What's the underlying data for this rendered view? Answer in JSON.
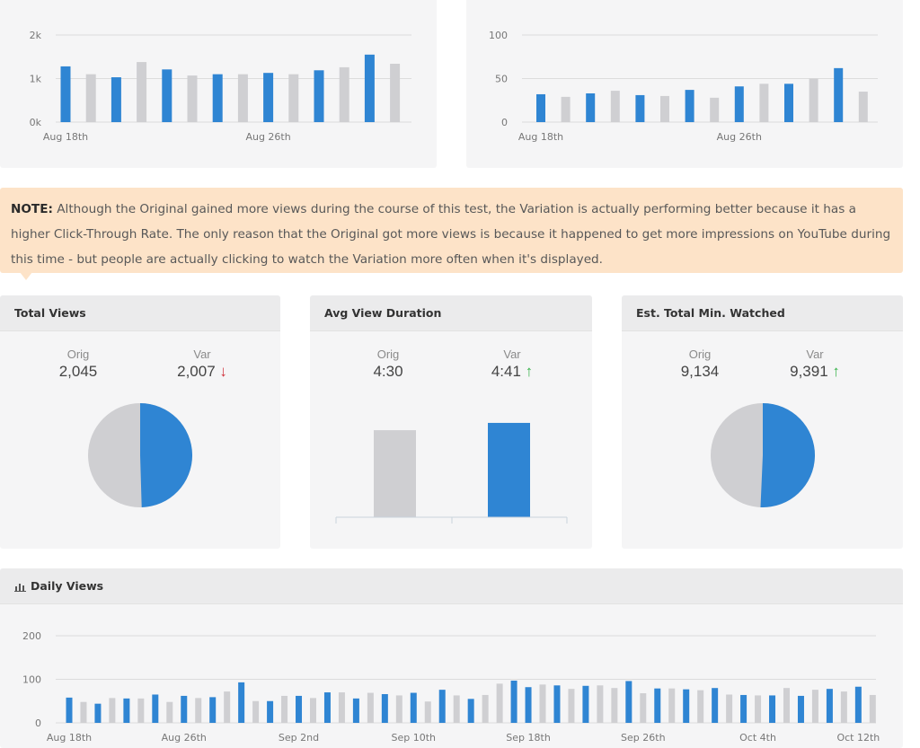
{
  "colors": {
    "primary": "#2f85d3",
    "secondary": "#cfcfd2",
    "note_bg": "#fde3c8",
    "down": "#d0313b",
    "up": "#37b34a"
  },
  "top_left_chart": {
    "chart_data": {
      "type": "bar",
      "ylim": [
        0,
        2000
      ],
      "y_ticks": [
        {
          "v": 0,
          "label": "0k"
        },
        {
          "v": 1000,
          "label": "1k"
        },
        {
          "v": 2000,
          "label": "2k"
        }
      ],
      "x_labels": [
        {
          "index": 0,
          "label": "Aug 18th"
        },
        {
          "index": 8,
          "label": "Aug 26th"
        }
      ],
      "values": [
        1280,
        1100,
        1030,
        1380,
        1210,
        1070,
        1100,
        1100,
        1130,
        1100,
        1190,
        1260,
        1550,
        1340
      ],
      "highlight": [
        true,
        false,
        true,
        false,
        true,
        false,
        true,
        false,
        true,
        false,
        true,
        false,
        true,
        false
      ]
    }
  },
  "top_right_chart": {
    "chart_data": {
      "type": "bar",
      "ylim": [
        0,
        100
      ],
      "y_ticks": [
        {
          "v": 0,
          "label": "0"
        },
        {
          "v": 50,
          "label": "50"
        },
        {
          "v": 100,
          "label": "100"
        }
      ],
      "x_labels": [
        {
          "index": 0,
          "label": "Aug 18th"
        },
        {
          "index": 8,
          "label": "Aug 26th"
        }
      ],
      "values": [
        32,
        29,
        33,
        36,
        31,
        30,
        37,
        28,
        41,
        44,
        44,
        50,
        62,
        35
      ],
      "highlight": [
        true,
        false,
        true,
        false,
        true,
        false,
        true,
        false,
        true,
        false,
        true,
        false,
        true,
        false
      ]
    }
  },
  "note": {
    "label": "NOTE:",
    "text": " Although the Original gained more views during the course of this test, the Variation is actually performing better because it has a higher Click-Through Rate. The only reason that the Original got more views is because it happened to get more impressions on YouTube during this time - but people are actually clicking to watch the Variation more often when it's displayed."
  },
  "total_views": {
    "title": "Total Views",
    "orig_label": "Orig",
    "orig_value": "2,045",
    "var_label": "Var",
    "var_value": "2,007",
    "var_arrow": "↓",
    "chart_data": {
      "type": "pie",
      "labels": [
        "Orig",
        "Var"
      ],
      "values": [
        2045,
        2007
      ]
    }
  },
  "avg_view_duration": {
    "title": "Avg View Duration",
    "orig_label": "Orig",
    "orig_value": "4:30",
    "var_label": "Var",
    "var_value": "4:41",
    "var_arrow": "↑",
    "chart_data": {
      "type": "bar",
      "categories": [
        "Orig",
        "Var"
      ],
      "values": [
        270,
        281
      ]
    }
  },
  "est_total_min": {
    "title": "Est. Total Min. Watched",
    "orig_label": "Orig",
    "orig_value": "9,134",
    "var_label": "Var",
    "var_value": "9,391",
    "var_arrow": "↑",
    "chart_data": {
      "type": "pie",
      "labels": [
        "Orig",
        "Var"
      ],
      "values": [
        9134,
        9391
      ]
    }
  },
  "daily_views": {
    "title": "Daily Views",
    "icon": "bar-chart-icon",
    "chart_data": {
      "type": "bar",
      "ylim": [
        0,
        200
      ],
      "y_ticks": [
        {
          "v": 0,
          "label": "0"
        },
        {
          "v": 100,
          "label": "100"
        },
        {
          "v": 200,
          "label": "200"
        }
      ],
      "x_labels": [
        {
          "index": 0,
          "label": "Aug 18th"
        },
        {
          "index": 8,
          "label": "Aug 26th"
        },
        {
          "index": 16,
          "label": "Sep 2nd"
        },
        {
          "index": 24,
          "label": "Sep 10th"
        },
        {
          "index": 32,
          "label": "Sep 18th"
        },
        {
          "index": 40,
          "label": "Sep 26th"
        },
        {
          "index": 48,
          "label": "Oct 4th"
        },
        {
          "index": 55,
          "label": "Oct 12th"
        }
      ],
      "values": [
        58,
        48,
        44,
        57,
        56,
        56,
        65,
        48,
        62,
        57,
        59,
        72,
        93,
        50,
        50,
        62,
        62,
        57,
        70,
        70,
        56,
        69,
        66,
        63,
        69,
        49,
        76,
        63,
        55,
        64,
        90,
        97,
        82,
        88,
        86,
        78,
        85,
        86,
        80,
        96,
        68,
        79,
        79,
        77,
        75,
        80,
        65,
        64,
        63,
        63,
        80,
        62,
        76,
        78,
        72,
        83,
        64
      ],
      "highlight": [
        true,
        false,
        true,
        false,
        true,
        false,
        true,
        false,
        true,
        false,
        true,
        false,
        true,
        false,
        true,
        false,
        true,
        false,
        true,
        false,
        true,
        false,
        true,
        false,
        true,
        false,
        true,
        false,
        true,
        false,
        false,
        true,
        true,
        false,
        true,
        false,
        true,
        false,
        false,
        true,
        false,
        true,
        false,
        true,
        false,
        true,
        false,
        true,
        false,
        true,
        false,
        true,
        false,
        true,
        false,
        true,
        false
      ]
    }
  }
}
